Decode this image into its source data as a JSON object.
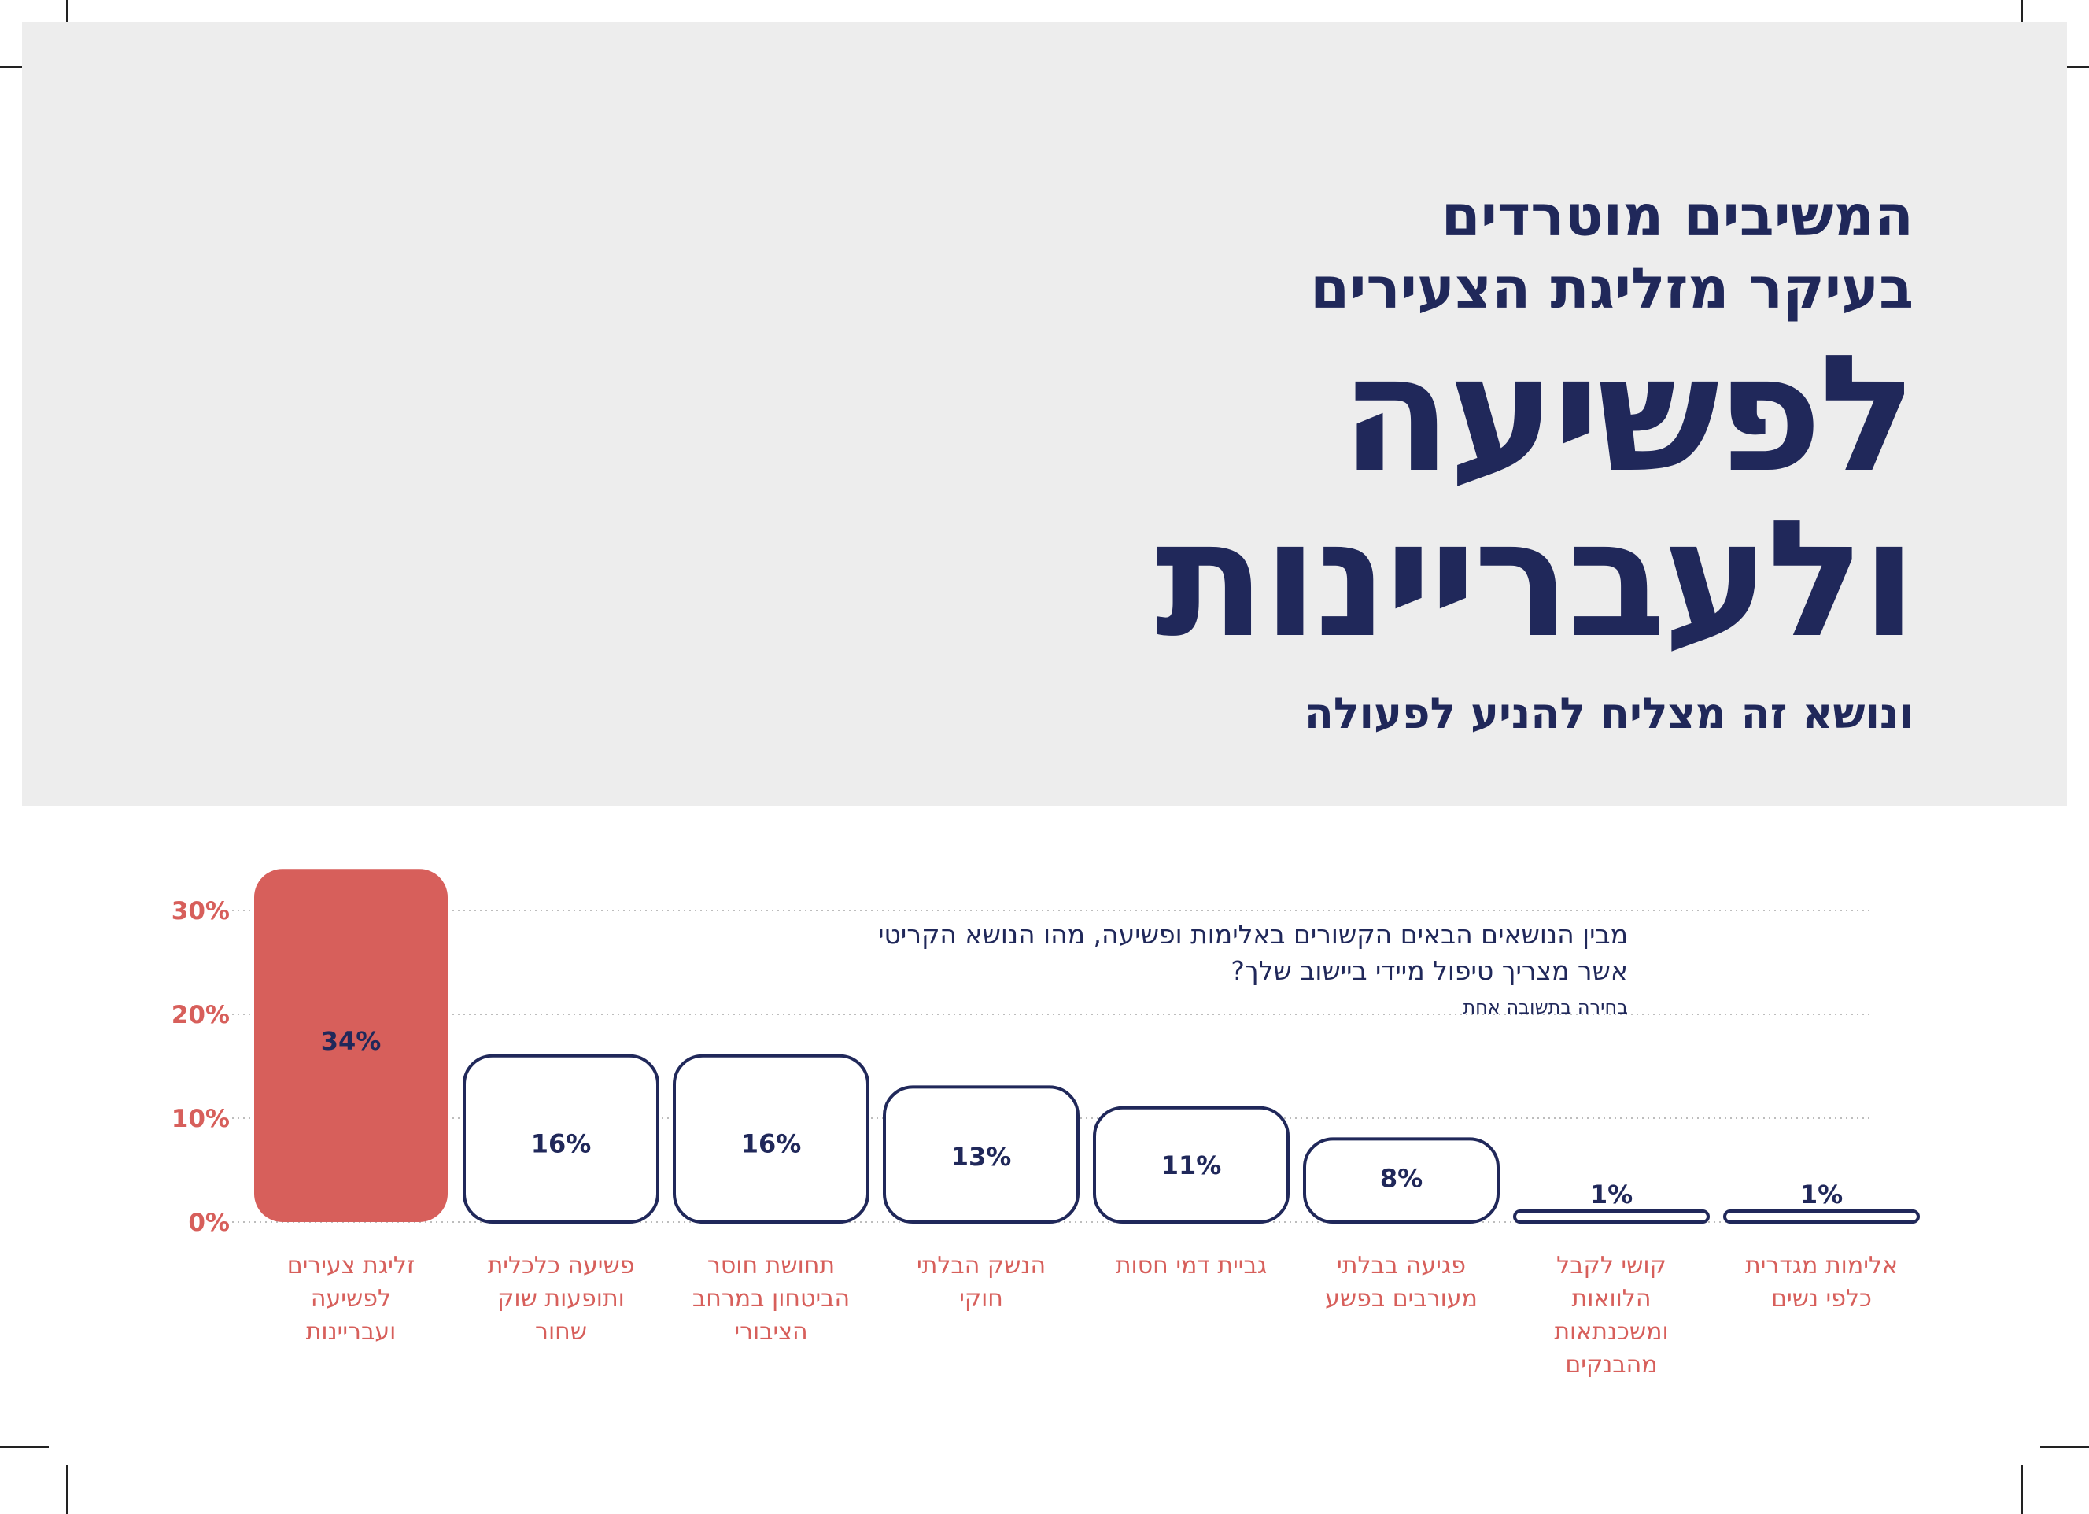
{
  "header": {
    "line1": "המשיבים מוטרדים",
    "line2": "בעיקר מזליגת הצעירים",
    "big1": "לפשיעה",
    "big2": "ולעבריינות",
    "subline": "ונושא זה מצליח להניע לפעולה"
  },
  "question": {
    "text": "מבין הנושאים הבאים הקשורים באלימות ופשיעה, מהו הנושא הקריטי אשר מצריך טיפול מיידי ביישוב שלך?",
    "note": "בחירה בתשובה אחת"
  },
  "chart_data": {
    "type": "bar",
    "categories": [
      "זליגת צעירים לפשיעה ועבריינות",
      "פשיעה כלכלית ותופעות שוק שחור",
      "תחושת חוסר הביטחון במרחב הציבורי",
      "הנשק הבלתי חוקי",
      "גביית דמי חסות",
      "פגיעה בבלתי מעורבים בפשע",
      "קושי לקבל הלוואות ומשכנתאות מהבנקים",
      "אלימות מגדרית כלפי נשים"
    ],
    "category_lines": [
      [
        "זליגת צעירים",
        "לפשיעה",
        "ועבריינות"
      ],
      [
        "פשיעה כלכלית",
        "ותופעות שוק",
        "שחור"
      ],
      [
        "תחושת חוסר",
        "הביטחון במרחב",
        "הציבורי"
      ],
      [
        "הנשק הבלתי",
        "חוקי"
      ],
      [
        "גביית דמי חסות"
      ],
      [
        "פגיעה בבלתי",
        "מעורבים בפשע"
      ],
      [
        "קושי לקבל",
        "הלוואות",
        "ומשכנתאות",
        "מהבנקים"
      ],
      [
        "אלימות מגדרית",
        "כלפי נשים"
      ]
    ],
    "values": [
      34,
      16,
      16,
      13,
      11,
      8,
      1,
      1
    ],
    "value_labels": [
      "34%",
      "16%",
      "16%",
      "13%",
      "11%",
      "8%",
      "1%",
      "1%"
    ],
    "highlight_index": 0,
    "y_ticks": [
      0,
      10,
      20,
      30
    ],
    "y_tick_labels": [
      "0%",
      "10%",
      "20%",
      "30%"
    ],
    "ylim": [
      0,
      34
    ],
    "grid": true,
    "colors": {
      "highlight": "#d75f5b",
      "outline": "#20285a",
      "axis_text": "#d75f5b",
      "category_text": "#d75f5b",
      "grid": "#bdbdbd"
    }
  }
}
